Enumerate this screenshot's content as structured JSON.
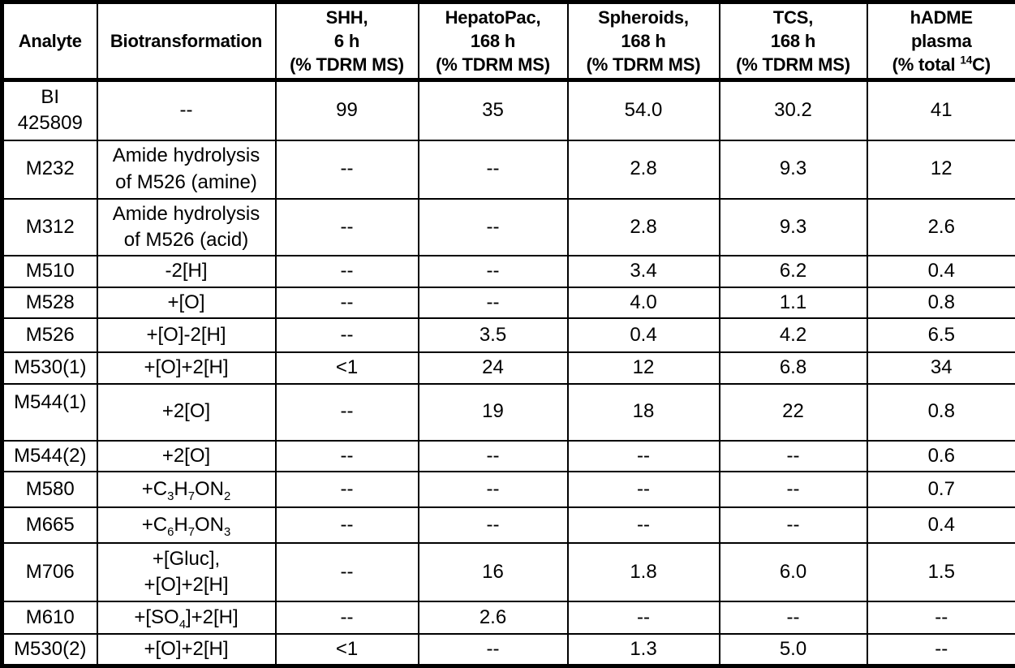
{
  "table": {
    "columns": [
      {
        "id": "analyte",
        "label": "Analyte"
      },
      {
        "id": "biotransformation",
        "label": "Biotransformation"
      },
      {
        "id": "shh-6h",
        "label": "SHH,\n6 h\n(% TDRM MS)"
      },
      {
        "id": "hepatopac-168h",
        "label": "HepatoPac,\n168 h\n(% TDRM MS)"
      },
      {
        "id": "spheroids-168h",
        "label": "Spheroids,\n168 h\n(% TDRM MS)"
      },
      {
        "id": "tcs-168h",
        "label": "TCS,\n168 h\n(% TDRM MS)"
      },
      {
        "id": "hadme-plasma",
        "label": "hADME\nplasma\n(% total ^14^C)"
      }
    ],
    "rows": [
      {
        "analyte": "BI\n425809",
        "biotransformation": "--",
        "values": [
          "99",
          "35",
          "54.0",
          "30.2",
          "41"
        ]
      },
      {
        "analyte": "M232",
        "biotransformation": "Amide hydrolysis\nof M526 (amine)",
        "values": [
          "--",
          "--",
          "2.8",
          "9.3",
          "12"
        ]
      },
      {
        "analyte": "M312",
        "biotransformation": "Amide hydrolysis\nof M526 (acid)",
        "values": [
          "--",
          "--",
          "2.8",
          "9.3",
          "2.6"
        ]
      },
      {
        "analyte": "M510",
        "biotransformation": "-2[H]",
        "values": [
          "--",
          "--",
          "3.4",
          "6.2",
          "0.4"
        ]
      },
      {
        "analyte": "M528",
        "biotransformation": "+[O]",
        "values": [
          "--",
          "--",
          "4.0",
          "1.1",
          "0.8"
        ]
      },
      {
        "analyte": "M526",
        "biotransformation": "+[O]-2[H]",
        "values": [
          "--",
          "3.5",
          "0.4",
          "4.2",
          "6.5"
        ]
      },
      {
        "analyte": "M530(1)",
        "biotransformation": "+[O]+2[H]",
        "values": [
          "<1",
          "24",
          "12",
          "6.8",
          "34"
        ]
      },
      {
        "analyte": "M544(1)",
        "analyte_valign": "top",
        "biotransformation": "+2[O]",
        "values": [
          "--",
          "19",
          "18",
          "22",
          "0.8"
        ]
      },
      {
        "analyte": "M544(2)",
        "biotransformation": "+2[O]",
        "values": [
          "--",
          "--",
          "--",
          "--",
          "0.6"
        ]
      },
      {
        "analyte": "M580",
        "biotransformation": "+C~3~H~7~ON~2~",
        "values": [
          "--",
          "--",
          "--",
          "--",
          "0.7"
        ]
      },
      {
        "analyte": "M665",
        "biotransformation": "+C~6~H~7~ON~3~",
        "values": [
          "--",
          "--",
          "--",
          "--",
          "0.4"
        ]
      },
      {
        "analyte": "M706",
        "biotransformation": "+[Gluc],\n+[O]+2[H]",
        "values": [
          "--",
          "16",
          "1.8",
          "6.0",
          "1.5"
        ]
      },
      {
        "analyte": "M610",
        "biotransformation": "+[SO~4~]+2[H]",
        "values": [
          "--",
          "2.6",
          "--",
          "--",
          "--"
        ]
      },
      {
        "analyte": "M530(2)",
        "biotransformation": "+[O]+2[H]",
        "values": [
          "<1",
          "--",
          "1.3",
          "5.0",
          "--"
        ]
      }
    ]
  },
  "colors": {
    "text": "#000000",
    "border": "#000000",
    "background": "#ffffff"
  }
}
